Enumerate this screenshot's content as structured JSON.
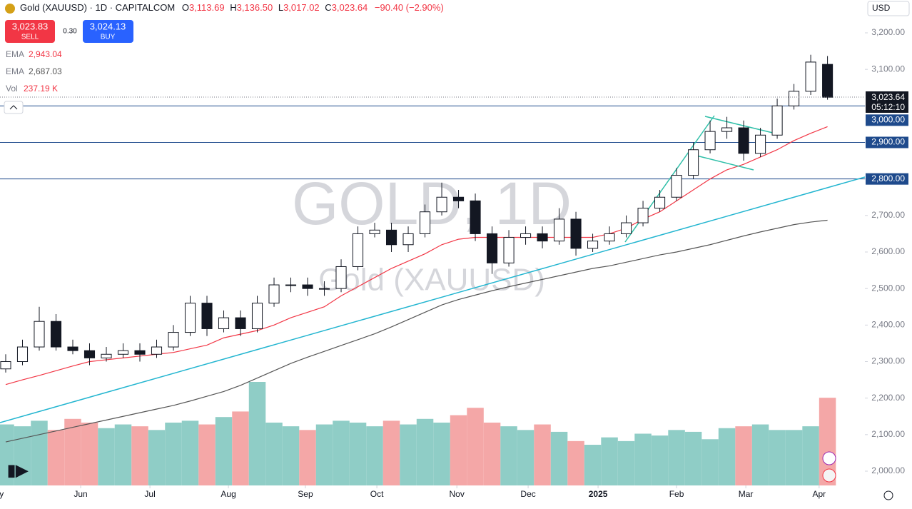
{
  "header": {
    "symbol": "Gold (XAUUSD) · 1D · CAPITALCOM",
    "o": "O",
    "o_val": "3,113.69",
    "h": "H",
    "h_val": "3,136.50",
    "l": "L",
    "l_val": "3,017.02",
    "c": "C",
    "c_val": "3,023.64",
    "change": "−90.40 (−2.90%)",
    "sell_price": "3,023.83",
    "sell": "SELL",
    "spread": "0.30",
    "buy_price": "3,024.13",
    "buy": "BUY",
    "currency": "USD",
    "legend": [
      {
        "name": "EMA",
        "value": "2,943.04"
      },
      {
        "name": "EMA",
        "value": "2,687.03"
      },
      {
        "name": "Vol",
        "value": "237.19 K"
      }
    ],
    "last_price": "3,023.64",
    "countdown": "05:12:10",
    "watermark": "GOLD, 1D",
    "watermark_sub": "Gold (XAUUSD)"
  },
  "chart_data": {
    "type": "candlestick",
    "x": [
      0,
      1,
      2,
      3,
      4,
      5,
      6,
      7,
      8,
      9,
      10,
      11,
      12,
      13,
      14,
      15,
      16,
      17,
      18,
      19,
      20,
      21,
      22,
      23,
      24,
      25,
      26,
      27,
      28,
      29,
      30,
      31,
      32,
      33,
      34,
      35,
      36,
      37,
      38,
      39,
      40,
      41,
      42,
      43,
      44,
      45,
      46,
      47,
      48,
      49
    ],
    "open": [
      2280,
      2300,
      2340,
      2410,
      2340,
      2330,
      2310,
      2320,
      2330,
      2320,
      2340,
      2380,
      2460,
      2390,
      2420,
      2390,
      2460,
      2510,
      2510,
      2500,
      2500,
      2560,
      2650,
      2660,
      2620,
      2650,
      2710,
      2750,
      2740,
      2650,
      2570,
      2640,
      2650,
      2630,
      2690,
      2610,
      2630,
      2650,
      2680,
      2720,
      2750,
      2810,
      2880,
      2930,
      2940,
      2870,
      2920,
      3000,
      3040,
      3113.69
    ],
    "high": [
      2320,
      2360,
      2450,
      2430,
      2360,
      2350,
      2340,
      2350,
      2350,
      2360,
      2400,
      2480,
      2480,
      2440,
      2440,
      2480,
      2530,
      2530,
      2530,
      2520,
      2580,
      2670,
      2680,
      2680,
      2670,
      2730,
      2790,
      2770,
      2760,
      2670,
      2660,
      2670,
      2670,
      2720,
      2710,
      2650,
      2670,
      2700,
      2740,
      2770,
      2830,
      2900,
      2960,
      2970,
      2960,
      2940,
      3020,
      3060,
      3140,
      3136.5
    ],
    "low": [
      2270,
      2290,
      2330,
      2330,
      2320,
      2290,
      2300,
      2310,
      2300,
      2310,
      2330,
      2370,
      2370,
      2380,
      2370,
      2380,
      2450,
      2490,
      2480,
      2480,
      2490,
      2550,
      2640,
      2600,
      2600,
      2640,
      2700,
      2720,
      2630,
      2540,
      2560,
      2620,
      2610,
      2620,
      2590,
      2600,
      2620,
      2640,
      2670,
      2710,
      2740,
      2800,
      2870,
      2910,
      2850,
      2860,
      2910,
      2990,
      3030,
      3017.02
    ],
    "close": [
      2300,
      2340,
      2410,
      2340,
      2330,
      2310,
      2320,
      2330,
      2320,
      2340,
      2380,
      2460,
      2390,
      2420,
      2390,
      2460,
      2510,
      2510,
      2500,
      2500,
      2560,
      2650,
      2660,
      2620,
      2650,
      2710,
      2750,
      2740,
      2650,
      2570,
      2640,
      2650,
      2630,
      2690,
      2610,
      2630,
      2650,
      2680,
      2720,
      2750,
      2810,
      2880,
      2930,
      2940,
      2870,
      2920,
      3000,
      3040,
      3120,
      3023.64
    ],
    "up_color": "#089981",
    "down_color": "#f23645",
    "series": [
      {
        "name": "EMA",
        "color": "#f23645",
        "values": [
          2237,
          2250,
          2262,
          2275,
          2288,
          2300,
          2305,
          2310,
          2315,
          2320,
          2325,
          2335,
          2345,
          2365,
          2375,
          2385,
          2400,
          2420,
          2435,
          2450,
          2480,
          2505,
          2530,
          2555,
          2575,
          2595,
          2620,
          2635,
          2640,
          2640,
          2640,
          2640,
          2640,
          2640,
          2640,
          2640,
          2650,
          2665,
          2690,
          2710,
          2740,
          2770,
          2800,
          2825,
          2840,
          2860,
          2880,
          2905,
          2925,
          2943.04
        ]
      },
      {
        "name": "EMA",
        "color": "#555555",
        "values": [
          2080,
          2090,
          2100,
          2110,
          2120,
          2130,
          2140,
          2150,
          2160,
          2170,
          2180,
          2192,
          2205,
          2218,
          2235,
          2255,
          2275,
          2295,
          2312,
          2328,
          2344,
          2360,
          2376,
          2395,
          2415,
          2435,
          2455,
          2470,
          2482,
          2494,
          2505,
          2515,
          2525,
          2535,
          2545,
          2555,
          2562,
          2572,
          2582,
          2592,
          2600,
          2610,
          2620,
          2632,
          2644,
          2655,
          2665,
          2675,
          2682,
          2687.03
        ]
      }
    ],
    "volume": {
      "name": "Vol",
      "values": [
        165,
        160,
        175,
        150,
        180,
        170,
        155,
        165,
        160,
        150,
        170,
        175,
        165,
        185,
        200,
        280,
        170,
        160,
        150,
        165,
        175,
        170,
        160,
        175,
        165,
        180,
        170,
        190,
        210,
        170,
        160,
        150,
        165,
        145,
        120,
        110,
        130,
        120,
        140,
        135,
        150,
        145,
        125,
        155,
        160,
        165,
        150,
        150,
        160,
        237.19
      ],
      "up_color": "#8fcdc6",
      "down_color": "#f4a7a7"
    },
    "levels": [
      {
        "value": 3000,
        "label": "3,000.00"
      },
      {
        "value": 2900,
        "label": "2,900.00"
      },
      {
        "value": 2800,
        "label": "2,800.00"
      }
    ],
    "level_color": "#1e4a8c",
    "ylim": [
      2000,
      3200
    ],
    "yticks": [
      {
        "value": 2000,
        "label": "2,000.00"
      },
      {
        "value": 2100,
        "label": "2,100.00"
      },
      {
        "value": 2200,
        "label": "2,200.00"
      },
      {
        "value": 2300,
        "label": "2,300.00"
      },
      {
        "value": 2400,
        "label": "2,400.00"
      },
      {
        "value": 2500,
        "label": "2,500.00"
      },
      {
        "value": 2600,
        "label": "2,600.00"
      },
      {
        "value": 2700,
        "label": "2,700.00"
      },
      {
        "value": 2800,
        "label": "2,800.00"
      },
      {
        "value": 2900,
        "label": "2,900.00"
      },
      {
        "value": 3000,
        "label": "3,000.00"
      },
      {
        "value": 3100,
        "label": "3,100.00"
      },
      {
        "value": 3200,
        "label": "3,200.00"
      }
    ],
    "xlim": [
      -0.34,
      51.23
    ],
    "xticks": [
      {
        "value": -0.6,
        "label": "May"
      },
      {
        "value": 4.47,
        "label": "Jun"
      },
      {
        "value": 8.6,
        "label": "Jul"
      },
      {
        "value": 13.28,
        "label": "Aug"
      },
      {
        "value": 17.87,
        "label": "Sep"
      },
      {
        "value": 22.13,
        "label": "Oct"
      },
      {
        "value": 26.9,
        "label": "Nov"
      },
      {
        "value": 31.15,
        "label": "Dec"
      },
      {
        "value": 35.32,
        "label": "2025"
      },
      {
        "value": 40,
        "label": "Feb"
      },
      {
        "value": 44.13,
        "label": "Mar"
      },
      {
        "value": 48.5,
        "label": "Apr"
      }
    ],
    "grid": false
  }
}
